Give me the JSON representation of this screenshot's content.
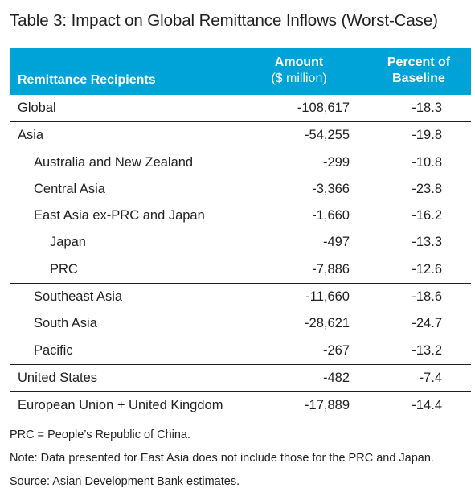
{
  "title": {
    "main": "Table 3: Impact on Global Remittance Inflows",
    "sub": "(Worst-Case)"
  },
  "header": {
    "recipients": "Remittance Recipients",
    "amount": "Amount",
    "amount_unit": "($ million)",
    "percent_line1": "Percent of",
    "percent_line2": "Baseline"
  },
  "rows": [
    {
      "label": "Global",
      "amount": "-108,617",
      "percent": "-18.3"
    },
    {
      "label": "Asia",
      "amount": "-54,255",
      "percent": "-19.8"
    },
    {
      "label": "Australia and New Zealand",
      "amount": "-299",
      "percent": "-10.8"
    },
    {
      "label": "Central Asia",
      "amount": "-3,366",
      "percent": "-23.8"
    },
    {
      "label": "East Asia ex-PRC and Japan",
      "amount": "-1,660",
      "percent": "-16.2"
    },
    {
      "label": "Japan",
      "amount": "-497",
      "percent": "-13.3"
    },
    {
      "label": "PRC",
      "amount": "-7,886",
      "percent": "-12.6"
    },
    {
      "label": "Southeast Asia",
      "amount": "-11,660",
      "percent": "-18.6"
    },
    {
      "label": "South Asia",
      "amount": "-28,621",
      "percent": "-24.7"
    },
    {
      "label": "Pacific",
      "amount": "-267",
      "percent": "-13.2"
    },
    {
      "label": "United States",
      "amount": "-482",
      "percent": "-7.4"
    },
    {
      "label": "European Union + United Kingdom",
      "amount": "-17,889",
      "percent": "-14.4"
    }
  ],
  "notes": {
    "abbrev": "PRC = People’s Republic of China.",
    "note": "Note: Data presented for East Asia does not include those for the PRC and Japan.",
    "source": "Source: Asian Development Bank estimates."
  },
  "colors": {
    "header_bg": "#00a3d8",
    "header_text": "#ffffff",
    "text": "#231f20"
  }
}
